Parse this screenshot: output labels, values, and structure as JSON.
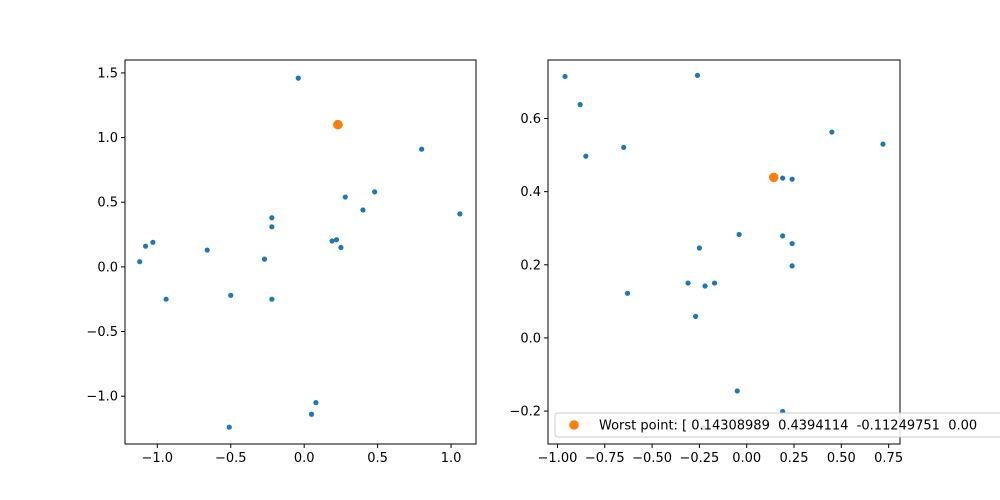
{
  "colors": {
    "series": "#1f77b4",
    "highlight": "#ff7f0e",
    "axes": "#000000",
    "background": "#ffffff"
  },
  "chart_data": [
    {
      "type": "scatter",
      "title": "",
      "xlabel": "",
      "ylabel": "",
      "xlim": [
        -1.22,
        1.17
      ],
      "ylim": [
        -1.37,
        1.6
      ],
      "xticks": [
        -1.0,
        -0.5,
        0.0,
        0.5,
        1.0
      ],
      "xtick_labels": [
        "−1.0",
        "−0.5",
        "0.0",
        "0.5",
        "1.0"
      ],
      "yticks": [
        -1.0,
        -0.5,
        0.0,
        0.5,
        1.0,
        1.5
      ],
      "ytick_labels": [
        "−1.0",
        "−0.5",
        "0.0",
        "0.5",
        "1.0",
        "1.5"
      ],
      "grid": false,
      "series": [
        {
          "color": "#1f77b4",
          "points": [
            [
              -0.04,
              1.46
            ],
            [
              0.8,
              0.91
            ],
            [
              1.06,
              0.41
            ],
            [
              0.48,
              0.58
            ],
            [
              0.28,
              0.54
            ],
            [
              0.4,
              0.44
            ],
            [
              -0.22,
              0.38
            ],
            [
              -0.22,
              0.31
            ],
            [
              0.22,
              0.21
            ],
            [
              0.19,
              0.2
            ],
            [
              0.25,
              0.15
            ],
            [
              -1.03,
              0.19
            ],
            [
              -1.08,
              0.16
            ],
            [
              -0.66,
              0.13
            ],
            [
              -0.27,
              0.06
            ],
            [
              -1.12,
              0.04
            ],
            [
              -0.94,
              -0.25
            ],
            [
              -0.5,
              -0.22
            ],
            [
              -0.22,
              -0.25
            ],
            [
              0.08,
              -1.05
            ],
            [
              0.05,
              -1.14
            ],
            [
              -0.51,
              -1.24
            ]
          ]
        },
        {
          "color": "#ff7f0e",
          "highlight": true,
          "points": [
            [
              0.23,
              1.1
            ]
          ]
        }
      ]
    },
    {
      "type": "scatter",
      "title": "",
      "xlabel": "",
      "ylabel": "",
      "xlim": [
        -1.05,
        0.81
      ],
      "ylim": [
        -0.29,
        0.76
      ],
      "xticks": [
        -1.0,
        -0.75,
        -0.5,
        -0.25,
        0.0,
        0.25,
        0.5,
        0.75
      ],
      "xtick_labels": [
        "−1.00",
        "−0.75",
        "−0.50",
        "−0.25",
        "0.00",
        "0.25",
        "0.50",
        "0.75"
      ],
      "yticks": [
        -0.2,
        0.0,
        0.2,
        0.4,
        0.6
      ],
      "ytick_labels": [
        "−0.2",
        "0.0",
        "0.2",
        "0.4",
        "0.6"
      ],
      "grid": false,
      "legend": {
        "placement": "lower-left",
        "entries": [
          "Worst point: [ 0.14308989  0.4394114  -0.11249751  0.00"
        ]
      },
      "series": [
        {
          "color": "#1f77b4",
          "points": [
            [
              -0.96,
              0.715
            ],
            [
              -0.26,
              0.718
            ],
            [
              -0.88,
              0.638
            ],
            [
              -0.85,
              0.497
            ],
            [
              -0.65,
              0.521
            ],
            [
              0.45,
              0.563
            ],
            [
              0.72,
              0.53
            ],
            [
              0.19,
              0.437
            ],
            [
              0.24,
              0.434
            ],
            [
              -0.04,
              0.283
            ],
            [
              0.19,
              0.279
            ],
            [
              0.24,
              0.258
            ],
            [
              -0.25,
              0.246
            ],
            [
              0.24,
              0.197
            ],
            [
              -0.31,
              0.15
            ],
            [
              -0.17,
              0.15
            ],
            [
              -0.22,
              0.142
            ],
            [
              -0.63,
              0.122
            ],
            [
              -0.27,
              0.059
            ],
            [
              -0.05,
              -0.145
            ],
            [
              0.19,
              -0.201
            ],
            [
              -0.23,
              -0.246
            ]
          ]
        },
        {
          "name": "Worst point: [ 0.14308989  0.4394114  -0.11249751  0.00",
          "color": "#ff7f0e",
          "highlight": true,
          "points": [
            [
              0.143,
              0.439
            ]
          ]
        }
      ]
    }
  ]
}
